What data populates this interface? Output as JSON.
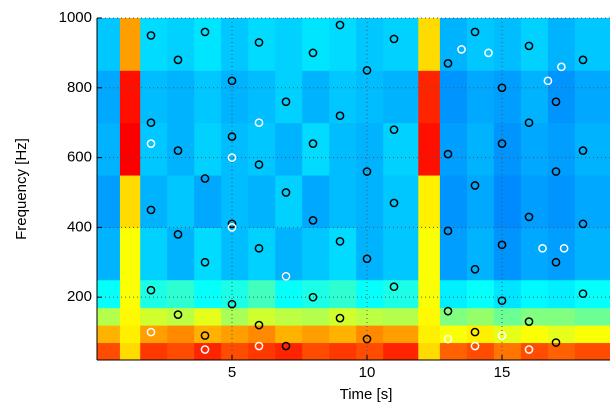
{
  "chart_data": {
    "type": "heatmap",
    "xlabel": "Time [s]",
    "ylabel": "Frequency [Hz]",
    "xlim": [
      0,
      19
    ],
    "ylim": [
      20,
      1000
    ],
    "xticks": [
      5,
      10,
      15
    ],
    "yticks": [
      200,
      400,
      600,
      800,
      1000
    ],
    "grid": true,
    "colormap": "jet",
    "x_edges": [
      0,
      0.85,
      1.6,
      2.6,
      3.6,
      4.6,
      5.6,
      6.6,
      7.6,
      8.6,
      9.6,
      10.6,
      11.9,
      12.7,
      13.7,
      14.7,
      15.7,
      16.7,
      17.7,
      19
    ],
    "y_edges": [
      20,
      70,
      120,
      170,
      250,
      400,
      550,
      700,
      850,
      1000
    ],
    "z": [
      [
        0.8,
        0.66,
        0.82,
        0.8,
        0.84,
        0.8,
        0.82,
        0.84,
        0.8,
        0.82,
        0.8,
        0.84,
        0.66,
        0.78,
        0.8,
        0.76,
        0.8,
        0.78,
        0.8
      ],
      [
        0.7,
        0.64,
        0.72,
        0.74,
        0.7,
        0.72,
        0.74,
        0.7,
        0.72,
        0.7,
        0.74,
        0.72,
        0.64,
        0.62,
        0.64,
        0.6,
        0.62,
        0.6,
        0.62
      ],
      [
        0.55,
        0.63,
        0.58,
        0.56,
        0.6,
        0.54,
        0.58,
        0.56,
        0.55,
        0.58,
        0.56,
        0.55,
        0.63,
        0.5,
        0.52,
        0.48,
        0.5,
        0.5,
        0.48
      ],
      [
        0.38,
        0.62,
        0.4,
        0.42,
        0.38,
        0.4,
        0.44,
        0.38,
        0.4,
        0.42,
        0.38,
        0.4,
        0.62,
        0.36,
        0.38,
        0.35,
        0.37,
        0.36,
        0.38
      ],
      [
        0.3,
        0.62,
        0.33,
        0.3,
        0.34,
        0.31,
        0.33,
        0.3,
        0.32,
        0.34,
        0.3,
        0.32,
        0.62,
        0.28,
        0.3,
        0.27,
        0.29,
        0.28,
        0.3
      ],
      [
        0.28,
        0.66,
        0.3,
        0.32,
        0.29,
        0.31,
        0.3,
        0.33,
        0.29,
        0.31,
        0.3,
        0.32,
        0.64,
        0.27,
        0.29,
        0.26,
        0.28,
        0.27,
        0.29
      ],
      [
        0.3,
        0.88,
        0.32,
        0.3,
        0.33,
        0.31,
        0.32,
        0.3,
        0.34,
        0.31,
        0.3,
        0.33,
        0.86,
        0.28,
        0.3,
        0.27,
        0.29,
        0.28,
        0.3
      ],
      [
        0.29,
        0.86,
        0.31,
        0.3,
        0.32,
        0.3,
        0.31,
        0.33,
        0.3,
        0.32,
        0.31,
        0.3,
        0.84,
        0.27,
        0.29,
        0.28,
        0.3,
        0.27,
        0.29
      ],
      [
        0.32,
        0.72,
        0.34,
        0.33,
        0.35,
        0.32,
        0.34,
        0.33,
        0.35,
        0.34,
        0.32,
        0.33,
        0.66,
        0.3,
        0.32,
        0.31,
        0.33,
        0.3,
        0.32
      ]
    ],
    "series": [
      {
        "color": "#000000",
        "x": [
          2,
          2,
          2,
          2,
          3,
          3,
          3,
          3,
          4,
          4,
          4,
          4,
          5,
          5,
          5,
          5,
          6,
          6,
          6,
          6,
          7,
          7,
          7,
          7,
          8,
          8,
          8,
          8,
          9,
          9,
          9,
          9,
          10,
          10,
          10,
          10,
          11,
          11,
          11,
          11,
          13,
          13,
          13,
          13,
          14,
          14,
          14,
          14,
          15,
          15,
          15,
          15,
          16,
          16,
          16,
          16,
          17,
          17,
          17,
          17,
          18,
          18,
          18,
          18
        ],
        "y": [
          950,
          700,
          450,
          220,
          880,
          620,
          380,
          150,
          960,
          540,
          300,
          90,
          820,
          660,
          410,
          180,
          930,
          580,
          340,
          120,
          760,
          500,
          260,
          60,
          900,
          640,
          420,
          200,
          980,
          720,
          360,
          140,
          850,
          560,
          310,
          80,
          940,
          680,
          470,
          230,
          870,
          610,
          390,
          160,
          960,
          520,
          280,
          100,
          800,
          640,
          350,
          190,
          920,
          700,
          430,
          130,
          760,
          560,
          300,
          70,
          880,
          620,
          410,
          210
        ]
      },
      {
        "color": "#ffffff",
        "x": [
          2,
          5,
          5,
          6,
          7,
          13.5,
          14.5,
          16.7,
          17.2,
          16.5,
          17.3,
          2,
          4,
          6,
          13,
          14,
          15,
          16
        ],
        "y": [
          640,
          600,
          400,
          700,
          260,
          910,
          900,
          820,
          860,
          340,
          340,
          100,
          50,
          60,
          80,
          60,
          90,
          50
        ]
      }
    ]
  }
}
